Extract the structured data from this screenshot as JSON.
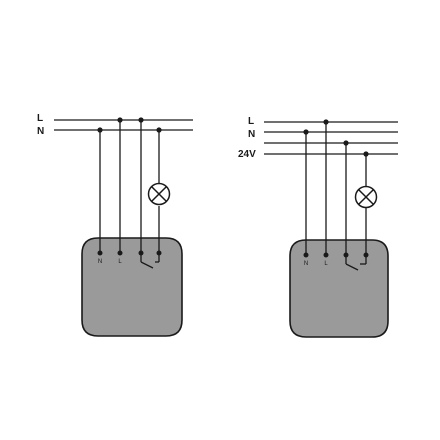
{
  "diagrams": [
    {
      "bus_labels": [
        "L",
        "N"
      ],
      "terminals": [
        "N",
        "L",
        "",
        ""
      ],
      "symbols": [
        "lamp-icon",
        "relay-contact-icon"
      ]
    },
    {
      "bus_labels": [
        "L",
        "N",
        "24V"
      ],
      "terminals": [
        "N",
        "L",
        "",
        ""
      ],
      "symbols": [
        "lamp-icon",
        "relay-contact-icon"
      ]
    }
  ],
  "colors": {
    "line": "#1a1a1a",
    "module_fill": "#9a9a9a",
    "background": "#ffffff"
  }
}
